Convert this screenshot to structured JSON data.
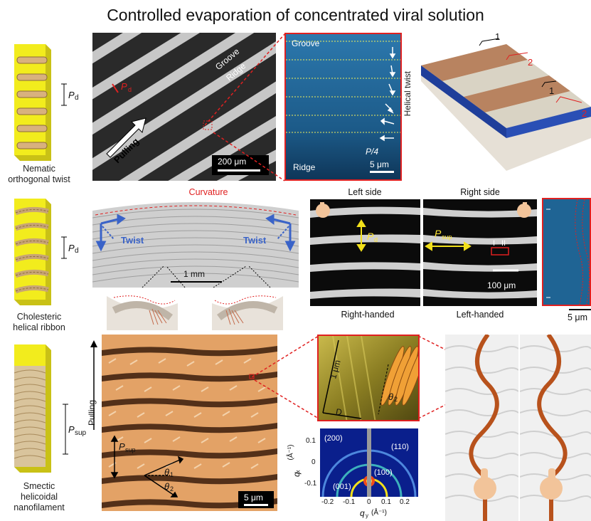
{
  "title": "Controlled evaporation of concentrated viral solution",
  "row1": {
    "schematic_label_line1": "Nematic",
    "schematic_label_line2": "orthogonal twist",
    "pd_label": "P",
    "pd_sub": "d",
    "micrograph": {
      "groove": "Groove",
      "ridge": "Ridge",
      "pulling": "Pulling",
      "pd_red": "P",
      "pd_red_sub": "d",
      "scale": "200 μm"
    },
    "zoom": {
      "groove": "Groove",
      "ridge": "Ridge",
      "helical_twist": "Helical twist",
      "p4": "P/4",
      "scale": "5 μm"
    },
    "render_3d": {
      "label_a": "1",
      "label_b": "2",
      "label_c": "1",
      "label_d": "2"
    }
  },
  "row2": {
    "schematic_label_line1": "Cholesteric",
    "schematic_label_line2": "helical ribbon",
    "pd_label": "P",
    "pd_sub": "d",
    "curvature": "Curvature",
    "twist_left": "Twist",
    "twist_right": "Twist",
    "scale": "1 mm",
    "left_side": "Left side",
    "right_side": "Right side",
    "left_pd": "P",
    "left_pd_sub": "d",
    "right_psup": "P",
    "right_psup_sub": "sup",
    "roman_1": "I",
    "roman_2": "II",
    "scale_100": "100 μm",
    "right_handed": "Right-handed",
    "left_handed": "Left-handed",
    "scale_5": "5 μm"
  },
  "row3": {
    "schematic_label_line1": "Smectic",
    "schematic_label_line2": "helicoidal",
    "schematic_label_line3": "nanofilament",
    "psup_label": "P",
    "psup_sub": "sup",
    "pulling": "Pulling",
    "psup_micro": "P",
    "psup_micro_sub": "sup",
    "theta1": "θ",
    "theta1_sub": "1",
    "theta2": "θ",
    "theta2_sub": "2",
    "scale": "5 μm",
    "inset_1um": "1 μm",
    "inset_D": "D",
    "inset_theta2": "θ",
    "inset_theta2_sub": "2",
    "saxs": {
      "ylabel": "q",
      "ylabel_sub": "x",
      "ylabel_unit": "(Å⁻¹)",
      "xlabel": "q",
      "xlabel_sub": "y",
      "xlabel_unit": "(Å⁻¹)",
      "peak_200": "(200)",
      "peak_110": "(110)",
      "peak_100": "(100)",
      "peak_001": "(001)",
      "yticks": [
        "-0.1",
        "0",
        "0.1"
      ],
      "xticks": [
        "-0.2",
        "-0.1",
        "0",
        "0.1",
        "0.2"
      ]
    }
  },
  "colors": {
    "schematic_yellow": "#f2ec1d",
    "scale_red": "#e02020",
    "blue_micro": "#1e5f8c",
    "orange_micro": "#e3a266"
  }
}
